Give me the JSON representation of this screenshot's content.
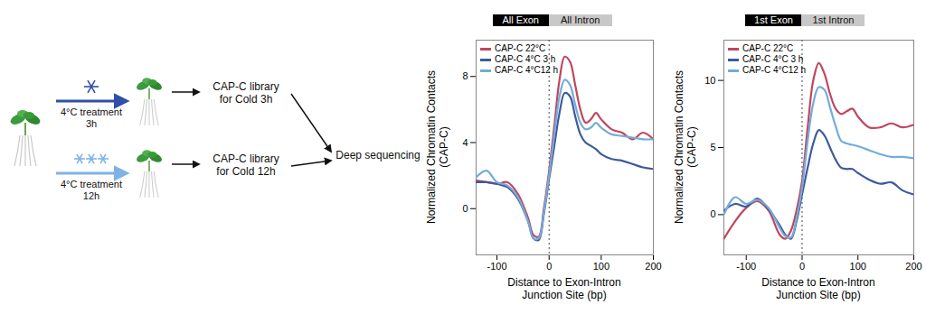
{
  "diagram": {
    "steps": [
      {
        "treatment": [
          "4°C treatment",
          "3h"
        ],
        "library": [
          "CAP-C library",
          "for Cold 3h"
        ]
      },
      {
        "treatment": [
          "4°C treatment",
          "12h"
        ],
        "library": [
          "CAP-C library",
          "for Cold 12h"
        ]
      }
    ],
    "output": "Deep sequencing"
  },
  "chart_data": [
    {
      "type": "line",
      "header_labels": [
        "All Exon",
        "All Intron"
      ],
      "junction_x": 0,
      "x_label": [
        "Distance to Exon-Intron",
        "Junction Site (bp)"
      ],
      "y_label": [
        "Normalized Chromatin Contacts",
        "(CAP-C)"
      ],
      "x": [
        -140,
        -120,
        -100,
        -80,
        -60,
        -40,
        -30,
        -20,
        -10,
        0,
        10,
        20,
        30,
        40,
        50,
        60,
        70,
        80,
        90,
        100,
        120,
        140,
        160,
        180,
        200
      ],
      "series": [
        {
          "name": "CAP-C 22°C",
          "color": "#c0465e",
          "values": [
            1.7,
            1.6,
            1.5,
            1.6,
            0.9,
            -0.6,
            -1.6,
            -1.7,
            0.0,
            2.3,
            5.0,
            7.8,
            9.2,
            8.9,
            7.5,
            6.0,
            5.2,
            5.4,
            5.8,
            5.4,
            4.8,
            4.6,
            4.2,
            4.6,
            4.2
          ]
        },
        {
          "name": "CAP-C 4°C 3 h",
          "color": "#3d5a9e",
          "values": [
            1.6,
            1.6,
            1.5,
            1.3,
            0.6,
            -0.8,
            -1.8,
            -1.9,
            -0.3,
            1.8,
            3.8,
            5.8,
            7.0,
            6.8,
            5.6,
            4.5,
            4.0,
            3.8,
            3.6,
            3.3,
            3.0,
            2.9,
            2.7,
            2.5,
            2.4
          ]
        },
        {
          "name": "CAP-C 4°C12 h",
          "color": "#74acd8",
          "values": [
            1.9,
            2.3,
            1.6,
            1.4,
            0.7,
            -0.8,
            -1.8,
            -1.8,
            -0.2,
            2.0,
            4.5,
            6.8,
            7.8,
            7.5,
            6.3,
            5.2,
            4.8,
            4.9,
            5.2,
            4.9,
            4.5,
            4.4,
            4.3,
            4.2,
            4.2
          ]
        }
      ],
      "xlim": [
        -140,
        200
      ],
      "xticks": [
        -100,
        0,
        100,
        200
      ],
      "ylim": [
        -2.8,
        10.2
      ],
      "yticks": [
        0,
        4,
        8
      ],
      "legend": "top-left",
      "grid": false
    },
    {
      "type": "line",
      "header_labels": [
        "1st Exon",
        "1st Intron"
      ],
      "junction_x": 0,
      "x_label": [
        "Distance to Exon-Intron",
        "Junction Site (bp)"
      ],
      "y_label": [
        "Normalized Chromatin Contacts",
        "(CAP-C)"
      ],
      "x": [
        -140,
        -120,
        -100,
        -80,
        -60,
        -40,
        -30,
        -20,
        -10,
        0,
        10,
        20,
        30,
        40,
        50,
        60,
        70,
        80,
        90,
        100,
        120,
        140,
        160,
        180,
        200
      ],
      "series": [
        {
          "name": "CAP-C 22°C",
          "color": "#c0465e",
          "values": [
            -1.8,
            -0.5,
            0.5,
            1.0,
            0.3,
            -1.5,
            -1.8,
            -1.2,
            0.3,
            2.5,
            6.5,
            10.0,
            11.3,
            10.5,
            9.0,
            7.9,
            7.5,
            7.7,
            7.9,
            7.3,
            6.5,
            6.5,
            6.8,
            6.5,
            6.7
          ]
        },
        {
          "name": "CAP-C 4°C 3 h",
          "color": "#3d5a9e",
          "values": [
            0.3,
            0.8,
            0.6,
            1.2,
            0.4,
            -0.8,
            -1.5,
            -1.8,
            -0.5,
            1.5,
            3.5,
            5.3,
            6.3,
            5.9,
            5.0,
            4.1,
            3.5,
            3.4,
            3.4,
            3.1,
            2.6,
            2.3,
            2.4,
            1.8,
            1.5
          ]
        },
        {
          "name": "CAP-C 4°C12 h",
          "color": "#74acd8",
          "values": [
            0.0,
            1.3,
            0.8,
            1.1,
            0.5,
            -1.0,
            -1.6,
            -1.7,
            -0.3,
            2.0,
            5.5,
            8.3,
            9.5,
            9.3,
            8.0,
            6.6,
            5.5,
            5.3,
            5.2,
            5.1,
            4.8,
            4.5,
            4.3,
            4.3,
            4.2
          ]
        }
      ],
      "xlim": [
        -140,
        200
      ],
      "xticks": [
        -100,
        0,
        100,
        200
      ],
      "ylim": [
        -3,
        13
      ],
      "yticks": [
        0,
        5,
        10
      ],
      "legend": "top-left",
      "grid": false
    }
  ]
}
